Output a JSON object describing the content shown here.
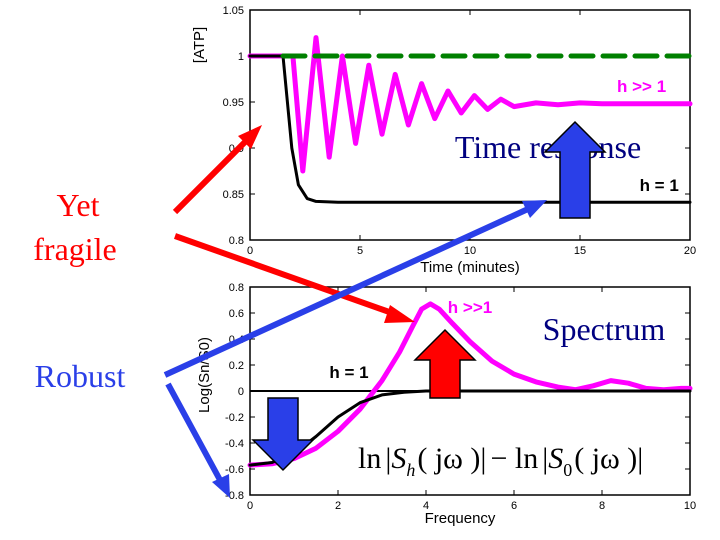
{
  "labels": {
    "yet_fragile_line1": "Yet",
    "yet_fragile_line2": "fragile",
    "robust": "Robust",
    "time_response": "Time response",
    "spectrum": "Spectrum",
    "formula_ln1": "ln",
    "formula_S": "S",
    "formula_h": "h",
    "formula_jw1": "( jω )",
    "formula_minus": "− ln",
    "formula_S0": "S",
    "formula_0": "0",
    "formula_jw2": "( jω )"
  },
  "colors": {
    "magenta": "#ff00ff",
    "black": "#000000",
    "green": "#008000",
    "red": "#ff0000",
    "blue": "#2a3fe8"
  },
  "chart_data": [
    {
      "type": "line",
      "xlabel": "Time (minutes)",
      "ylabel": "[ATP]",
      "xlim": [
        0,
        20
      ],
      "ylim": [
        0.8,
        1.05
      ],
      "xticks": [
        "0",
        "5",
        "10",
        "15",
        "20"
      ],
      "yticks": [
        "0.8",
        "0.85",
        "0.9",
        "0.95",
        "1",
        "1.05"
      ],
      "series": [
        {
          "name": "h >> 1",
          "color": "#ff00ff",
          "x": [
            0,
            1.5,
            1.95,
            2.4,
            3.0,
            3.6,
            4.2,
            4.8,
            5.4,
            6.0,
            6.6,
            7.2,
            7.8,
            8.4,
            9.0,
            9.6,
            10.2,
            10.8,
            11.4,
            12.0,
            13,
            14,
            15,
            16,
            17,
            18,
            19,
            20
          ],
          "y": [
            1.0,
            1.0,
            1.0,
            0.875,
            1.02,
            0.89,
            1.0,
            0.905,
            0.99,
            0.915,
            0.98,
            0.925,
            0.97,
            0.932,
            0.962,
            0.938,
            0.957,
            0.942,
            0.953,
            0.945,
            0.949,
            0.947,
            0.949,
            0.948,
            0.948,
            0.948,
            0.948,
            0.948
          ]
        },
        {
          "name": "h = 1",
          "color": "#000000",
          "x": [
            0,
            1.5,
            1.7,
            1.9,
            2.2,
            2.6,
            3.0,
            4,
            6,
            8,
            10,
            12,
            14,
            16,
            18,
            20
          ],
          "y": [
            1.0,
            1.0,
            0.95,
            0.9,
            0.86,
            0.845,
            0.842,
            0.841,
            0.841,
            0.841,
            0.841,
            0.841,
            0.841,
            0.841,
            0.841,
            0.841
          ]
        },
        {
          "name": "",
          "color": "#008000",
          "dashed": true,
          "x": [
            1.5,
            20
          ],
          "y": [
            1.0,
            1.0
          ]
        }
      ],
      "annotations": [
        {
          "text": "h >> 1",
          "x": 17.8,
          "y": 0.961
        },
        {
          "text": "h = 1",
          "x": 18.6,
          "y": 0.853
        }
      ]
    },
    {
      "type": "line",
      "xlabel": "Frequency",
      "ylabel": "Log(Sn/S0)",
      "xlim": [
        0,
        10
      ],
      "ylim": [
        -0.8,
        0.8
      ],
      "xticks": [
        "0",
        "2",
        "4",
        "6",
        "8",
        "10"
      ],
      "yticks": [
        "-0.8",
        "-0.6",
        "-0.4",
        "-0.2",
        "0",
        "0.2",
        "0.4",
        "0.6",
        "0.8"
      ],
      "series": [
        {
          "name": "h >> 1",
          "color": "#ff00ff",
          "x": [
            0,
            0.5,
            1.0,
            1.5,
            2.0,
            2.5,
            3.0,
            3.4,
            3.7,
            3.9,
            4.1,
            4.3,
            4.6,
            5.0,
            5.5,
            6.0,
            6.5,
            7.0,
            7.4,
            7.8,
            8.2,
            8.6,
            9.0,
            9.4,
            9.8,
            10
          ],
          "y": [
            -0.57,
            -0.56,
            -0.52,
            -0.44,
            -0.31,
            -0.14,
            0.08,
            0.3,
            0.5,
            0.63,
            0.67,
            0.63,
            0.52,
            0.38,
            0.23,
            0.13,
            0.07,
            0.03,
            0.01,
            0.04,
            0.08,
            0.06,
            0.02,
            0.01,
            0.02,
            0.02
          ]
        },
        {
          "name": "h = 1",
          "color": "#000000",
          "x": [
            0,
            0.5,
            1.0,
            1.5,
            2.0,
            2.5,
            3.0,
            3.5,
            4.0,
            5.0,
            6.0,
            7.0,
            8.0,
            9.0,
            10
          ],
          "y": [
            -0.57,
            -0.55,
            -0.48,
            -0.35,
            -0.2,
            -0.09,
            -0.03,
            -0.01,
            0.0,
            0.0,
            0.0,
            0.0,
            0.0,
            0.0,
            0.0
          ]
        }
      ],
      "annotations": [
        {
          "text": "h >>1",
          "x": 5.0,
          "y": 0.6
        },
        {
          "text": "h = 1",
          "x": 2.25,
          "y": 0.1
        }
      ]
    }
  ]
}
